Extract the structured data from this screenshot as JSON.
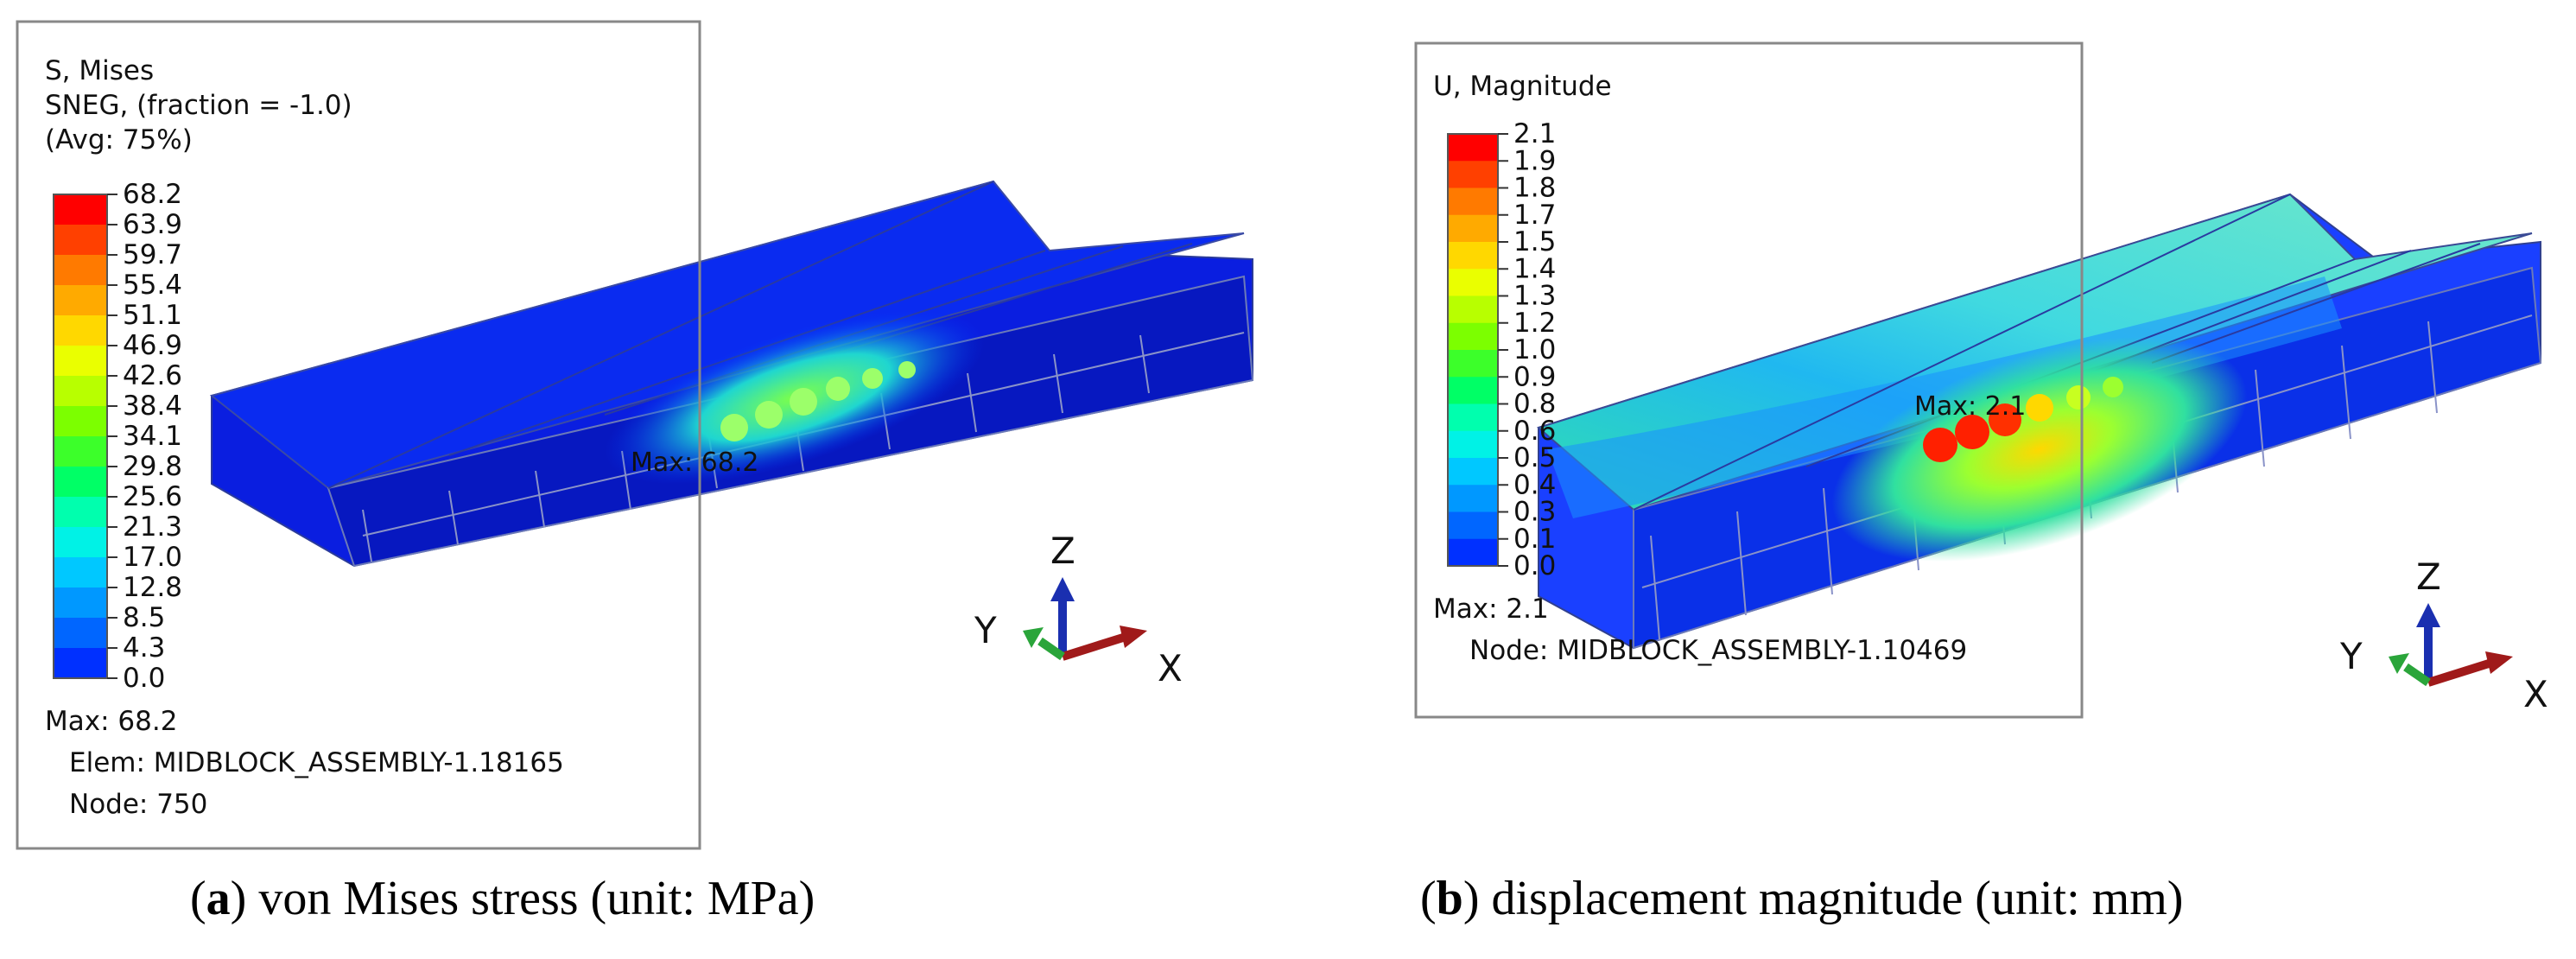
{
  "panels": [
    {
      "id": "a",
      "legend_title": [
        "S, Mises",
        "SNEG, (fraction = -1.0)",
        "(Avg: 75%)"
      ],
      "legend_values": [
        "68.2",
        "63.9",
        "59.7",
        "55.4",
        "51.1",
        "46.9",
        "42.6",
        "38.4",
        "34.1",
        "29.8",
        "25.6",
        "21.3",
        "17.0",
        "12.8",
        "8.5",
        "4.3",
        "0.0"
      ],
      "max_line": "Max: 68.2",
      "info_lines": [
        "Elem: MIDBLOCK_ASSEMBLY-1.18165",
        "Node: 750"
      ],
      "max_marker": "Max: 68.2",
      "caption_letter": "a",
      "caption_text": "von Mises stress (unit: MPa)"
    },
    {
      "id": "b",
      "legend_title": [
        "U, Magnitude"
      ],
      "legend_values": [
        "2.1",
        "1.9",
        "1.8",
        "1.7",
        "1.5",
        "1.4",
        "1.3",
        "1.2",
        "1.0",
        "0.9",
        "0.8",
        "0.6",
        "0.5",
        "0.4",
        "0.3",
        "0.1",
        "0.0"
      ],
      "max_line": "Max: 2.1",
      "info_lines": [
        "Node: MIDBLOCK_ASSEMBLY-1.10469"
      ],
      "max_marker": "Max: 2.1",
      "caption_letter": "b",
      "caption_text": "displacement magnitude (unit: mm)"
    }
  ],
  "axes": {
    "z": "Z",
    "y": "Y",
    "x": "X"
  },
  "colormap": [
    "#ff0000",
    "#ff4000",
    "#ff7a00",
    "#ffaa00",
    "#ffd800",
    "#eaff00",
    "#b8ff00",
    "#7cff00",
    "#3cff2a",
    "#00ff66",
    "#00ffae",
    "#00f2e6",
    "#00c8ff",
    "#0098ff",
    "#0066ff",
    "#0030ff"
  ]
}
